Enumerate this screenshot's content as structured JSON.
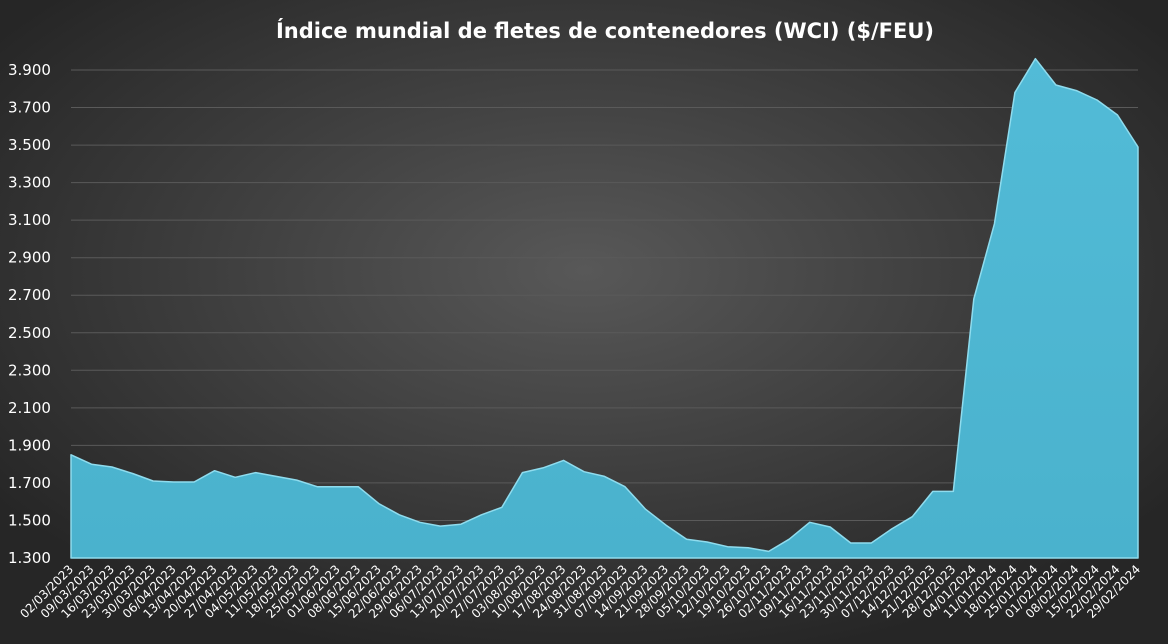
{
  "chart_data": {
    "type": "area",
    "title": "Índice mundial de fletes de contenedores (WCI) ($/FEU)",
    "xlabel": "",
    "ylabel": "",
    "ylim": [
      1300,
      3900
    ],
    "y_ticks": [
      1300,
      1500,
      1700,
      1900,
      2100,
      2300,
      2500,
      2700,
      2900,
      3100,
      3300,
      3500,
      3700,
      3900
    ],
    "y_tick_labels": [
      "1.300",
      "1.500",
      "1.700",
      "1.900",
      "2.100",
      "2.300",
      "2.500",
      "2.700",
      "2.900",
      "3.100",
      "3.300",
      "3.500",
      "3.700",
      "3.900"
    ],
    "grid": true,
    "legend": "none",
    "color": "#4eb6d2",
    "x": [
      "02/03/2023",
      "09/03/2023",
      "16/03/2023",
      "23/03/2023",
      "30/03/2023",
      "06/04/2023",
      "13/04/2023",
      "20/04/2023",
      "27/04/2023",
      "04/05/2023",
      "11/05/2023",
      "18/05/2023",
      "25/05/2023",
      "01/06/2023",
      "08/06/2023",
      "15/06/2023",
      "22/06/2023",
      "29/06/2023",
      "06/07/2023",
      "13/07/2023",
      "20/07/2023",
      "27/07/2023",
      "03/08/2023",
      "10/08/2023",
      "17/08/2023",
      "24/08/2023",
      "31/08/2023",
      "07/09/2023",
      "14/09/2023",
      "21/09/2023",
      "28/09/2023",
      "05/10/2023",
      "12/10/2023",
      "19/10/2023",
      "26/10/2023",
      "02/11/2023",
      "09/11/2023",
      "16/11/2023",
      "23/11/2023",
      "30/11/2023",
      "07/12/2023",
      "14/12/2023",
      "21/12/2023",
      "28/12/2023",
      "04/01/2024",
      "11/01/2024",
      "18/01/2024",
      "25/01/2024",
      "01/02/2024",
      "08/02/2024",
      "15/02/2024",
      "22/02/2024",
      "29/02/2024"
    ],
    "series": [
      {
        "values": [
          1850,
          1800,
          1785,
          1750,
          1710,
          1705,
          1705,
          1765,
          1730,
          1755,
          1735,
          1715,
          1680,
          1680,
          1680,
          1590,
          1530,
          1490,
          1470,
          1480,
          1530,
          1570,
          1755,
          1780,
          1820,
          1760,
          1735,
          1680,
          1560,
          1475,
          1400,
          1385,
          1360,
          1355,
          1335,
          1400,
          1490,
          1465,
          1380,
          1380,
          1455,
          1520,
          1655,
          1655,
          2680,
          3080,
          3780,
          3960,
          3820,
          3790,
          3740,
          3660,
          3490
        ]
      }
    ]
  }
}
